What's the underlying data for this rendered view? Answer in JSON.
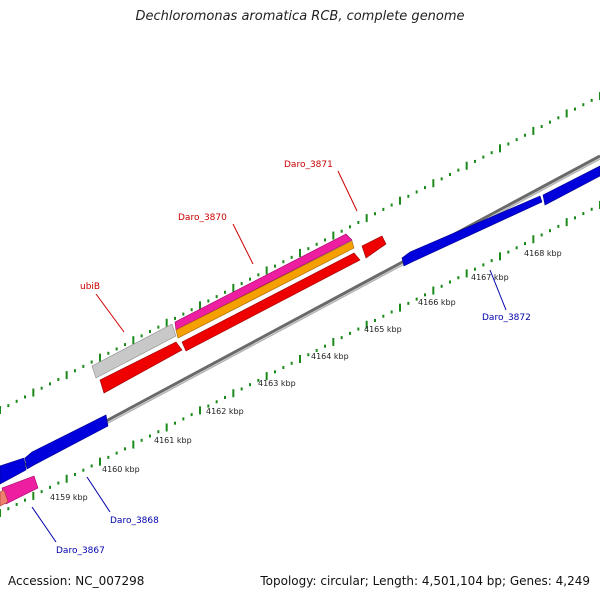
{
  "title": "Dechloromonas aromatica RCB, complete genome",
  "footer": {
    "accession": "Accession: NC_007298",
    "stats": "Topology: circular; Length: 4,501,104 bp; Genes: 4,249"
  },
  "colors": {
    "forward_cds": "#ee0000",
    "reverse_cds": "#0000dd",
    "rna_gene": "#ee1ea0",
    "feature_orange": "#f5a000",
    "pseudo_gene": "#c8c8c8",
    "backbone": "#8c8c8c",
    "tick_green": "#1a8a1a",
    "forward_label": "#cc0000",
    "reverse_label": "#0000aa"
  },
  "scale": {
    "ticks": [
      {
        "label": "4159 kbp"
      },
      {
        "label": "4160 kbp"
      },
      {
        "label": "4161 kbp"
      },
      {
        "label": "4162 kbp"
      },
      {
        "label": "4163 kbp"
      },
      {
        "label": "4164 kbp"
      },
      {
        "label": "4165 kbp"
      },
      {
        "label": "4166 kbp"
      },
      {
        "label": "4167 kbp"
      },
      {
        "label": "4168 kbp"
      }
    ]
  },
  "gene_labels": [
    {
      "name": "ubiB",
      "strand": "forward"
    },
    {
      "name": "Daro_3870",
      "strand": "forward"
    },
    {
      "name": "Daro_3871",
      "strand": "forward"
    },
    {
      "name": "Daro_3872",
      "strand": "reverse"
    },
    {
      "name": "Daro_3868",
      "strand": "reverse"
    },
    {
      "name": "Daro_3867",
      "strand": "reverse"
    }
  ]
}
